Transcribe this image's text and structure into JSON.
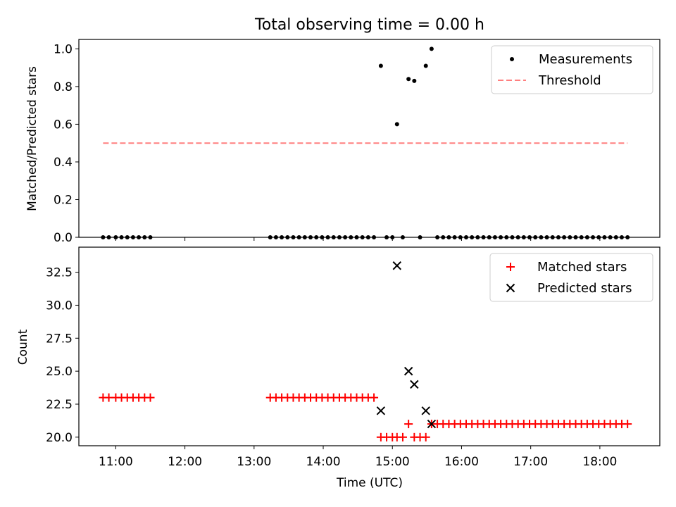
{
  "chart_data": [
    {
      "type": "scatter",
      "title": "Total observing time = 0.00 h",
      "xlabel": "",
      "ylabel": "Matched/Predicted stars",
      "ylim": [
        0,
        1.05
      ],
      "xlim": [
        "10:28",
        "18:52"
      ],
      "yticks": [
        "0.0",
        "0.2",
        "0.4",
        "0.6",
        "0.8",
        "1.0"
      ],
      "legend_position": "top-right",
      "series": [
        {
          "name": "Measurements",
          "color": "#000000",
          "marker": "dot",
          "x": [
            "10:49",
            "10:54",
            "11:00",
            "11:05",
            "11:10",
            "11:15",
            "11:20",
            "11:25",
            "11:30",
            "13:14",
            "13:19",
            "13:24",
            "13:29",
            "13:34",
            "13:39",
            "13:44",
            "13:49",
            "13:54",
            "13:59",
            "14:04",
            "14:09",
            "14:14",
            "14:19",
            "14:24",
            "14:29",
            "14:34",
            "14:39",
            "14:44",
            "14:50",
            "14:55",
            "15:00",
            "15:04",
            "15:09",
            "15:14",
            "15:19",
            "15:24",
            "15:29",
            "15:34",
            "15:39",
            "15:44",
            "15:49",
            "15:54",
            "15:59",
            "16:04",
            "16:09",
            "16:14",
            "16:19",
            "16:24",
            "16:29",
            "16:34",
            "16:39",
            "16:44",
            "16:49",
            "16:54",
            "16:59",
            "17:04",
            "17:09",
            "17:14",
            "17:19",
            "17:24",
            "17:29",
            "17:34",
            "17:39",
            "17:44",
            "17:49",
            "17:54",
            "17:59",
            "18:04",
            "18:09",
            "18:14",
            "18:19",
            "18:24"
          ],
          "y": [
            0,
            0,
            0,
            0,
            0,
            0,
            0,
            0,
            0,
            0,
            0,
            0,
            0,
            0,
            0,
            0,
            0,
            0,
            0,
            0,
            0,
            0,
            0,
            0,
            0,
            0,
            0,
            0,
            0.91,
            0,
            0,
            0.6,
            0,
            0.84,
            0.83,
            0,
            0.91,
            1.0,
            0,
            0,
            0,
            0,
            0,
            0,
            0,
            0,
            0,
            0,
            0,
            0,
            0,
            0,
            0,
            0,
            0,
            0,
            0,
            0,
            0,
            0,
            0,
            0,
            0,
            0,
            0,
            0,
            0,
            0,
            0,
            0,
            0,
            0
          ]
        },
        {
          "name": "Threshold",
          "color": "#ff7f7f",
          "line_style": "dashed",
          "x": [
            "10:49",
            "18:24"
          ],
          "y": [
            0.5,
            0.5
          ]
        }
      ]
    },
    {
      "type": "scatter",
      "title": "",
      "xlabel": "Time (UTC)",
      "ylabel": "Count",
      "ylim": [
        19.35,
        34.4
      ],
      "xlim": [
        "10:28",
        "18:52"
      ],
      "yticks": [
        "20.0",
        "22.5",
        "25.0",
        "27.5",
        "30.0",
        "32.5"
      ],
      "xticks": [
        "11:00",
        "12:00",
        "13:00",
        "14:00",
        "15:00",
        "16:00",
        "17:00",
        "18:00"
      ],
      "legend_position": "top-right",
      "series": [
        {
          "name": "Matched stars",
          "color": "#ff0000",
          "marker": "plus",
          "x": [
            "10:49",
            "10:54",
            "11:00",
            "11:05",
            "11:10",
            "11:15",
            "11:20",
            "11:25",
            "11:30",
            "13:14",
            "13:19",
            "13:24",
            "13:29",
            "13:34",
            "13:39",
            "13:44",
            "13:49",
            "13:54",
            "13:59",
            "14:04",
            "14:09",
            "14:14",
            "14:19",
            "14:24",
            "14:29",
            "14:34",
            "14:39",
            "14:44",
            "14:50",
            "14:55",
            "15:00",
            "15:04",
            "15:09",
            "15:14",
            "15:19",
            "15:24",
            "15:29",
            "15:34",
            "15:39",
            "15:44",
            "15:49",
            "15:54",
            "15:59",
            "16:04",
            "16:09",
            "16:14",
            "16:19",
            "16:24",
            "16:29",
            "16:34",
            "16:39",
            "16:44",
            "16:49",
            "16:54",
            "16:59",
            "17:04",
            "17:09",
            "17:14",
            "17:19",
            "17:24",
            "17:29",
            "17:34",
            "17:39",
            "17:44",
            "17:49",
            "17:54",
            "17:59",
            "18:04",
            "18:09",
            "18:14",
            "18:19",
            "18:24"
          ],
          "y": [
            23,
            23,
            23,
            23,
            23,
            23,
            23,
            23,
            23,
            23,
            23,
            23,
            23,
            23,
            23,
            23,
            23,
            23,
            23,
            23,
            23,
            23,
            23,
            23,
            23,
            23,
            23,
            23,
            20,
            20,
            20,
            20,
            20,
            21,
            20,
            20,
            20,
            21,
            21,
            21,
            21,
            21,
            21,
            21,
            21,
            21,
            21,
            21,
            21,
            21,
            21,
            21,
            21,
            21,
            21,
            21,
            21,
            21,
            21,
            21,
            21,
            21,
            21,
            21,
            21,
            21,
            21,
            21,
            21,
            21,
            21,
            21
          ]
        },
        {
          "name": "Predicted stars",
          "color": "#000000",
          "marker": "x",
          "x": [
            "14:50",
            "15:04",
            "15:14",
            "15:19",
            "15:29",
            "15:34"
          ],
          "y": [
            22,
            33,
            25,
            24,
            22,
            21
          ]
        }
      ]
    }
  ]
}
